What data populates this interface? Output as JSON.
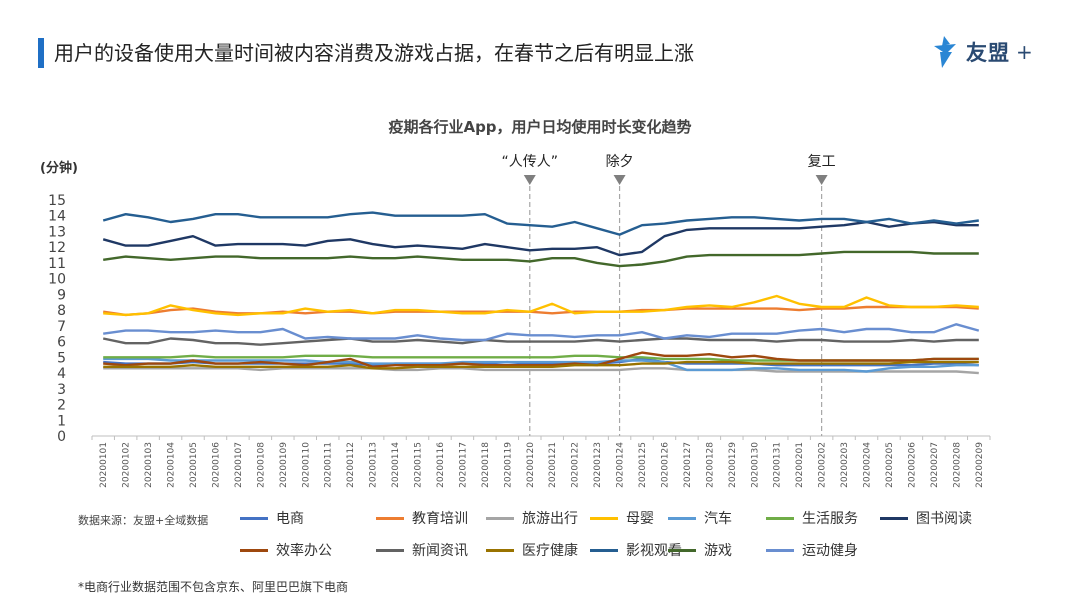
{
  "header": {
    "title": "用户的设备使用大量时间被内容消费及游戏占据，在春节之后有明显上涨",
    "logo_text": "友盟",
    "logo_plus": "+"
  },
  "source_label": "数据来源：友盟+全域数据",
  "footnote": "*电商行业数据范围不包含京东、阿里巴巴旗下电商",
  "chart_data": {
    "type": "line",
    "title": "疫期各行业App，用户日均使用时长变化趋势",
    "ylabel": "(分钟)",
    "ylim": [
      0,
      15
    ],
    "yticks": [
      0,
      1,
      2,
      3,
      4,
      5,
      6,
      7,
      8,
      9,
      10,
      11,
      12,
      13,
      14,
      15
    ],
    "categories": [
      "20200101",
      "20200102",
      "20200103",
      "20200104",
      "20200105",
      "20200106",
      "20200107",
      "20200108",
      "20200109",
      "20200110",
      "20200111",
      "20200112",
      "20200113",
      "20200114",
      "20200115",
      "20200116",
      "20200117",
      "20200118",
      "20200119",
      "20200120",
      "20200121",
      "20200122",
      "20200123",
      "20200124",
      "20200125",
      "20200126",
      "20200127",
      "20200128",
      "20200129",
      "20200130",
      "20200131",
      "20200201",
      "20200202",
      "20200203",
      "20200204",
      "20200205",
      "20200206",
      "20200207",
      "20200208",
      "20200209"
    ],
    "annotations": [
      {
        "label": "“人传人”",
        "category": "20200120"
      },
      {
        "label": "除夕",
        "category": "20200124"
      },
      {
        "label": "复工",
        "category": "20200202"
      }
    ],
    "series": [
      {
        "name": "电商",
        "color": "#4472c4",
        "values": [
          4.7,
          4.6,
          4.6,
          4.6,
          4.7,
          4.6,
          4.6,
          4.6,
          4.6,
          4.6,
          4.6,
          4.6,
          4.5,
          4.6,
          4.6,
          4.6,
          4.6,
          4.6,
          4.7,
          4.6,
          4.6,
          4.6,
          4.6,
          4.7,
          4.9,
          4.7,
          4.6,
          4.6,
          4.6,
          4.6,
          4.5,
          4.5,
          4.5,
          4.5,
          4.5,
          4.5,
          4.5,
          4.6,
          4.6,
          4.5
        ]
      },
      {
        "name": "教育培训",
        "color": "#ed7d31",
        "values": [
          7.9,
          7.7,
          7.8,
          8.0,
          8.1,
          7.9,
          7.8,
          7.8,
          7.9,
          7.8,
          7.9,
          7.9,
          7.8,
          7.9,
          7.9,
          7.9,
          7.9,
          7.9,
          7.9,
          7.9,
          7.8,
          7.9,
          7.9,
          7.9,
          8.0,
          8.0,
          8.1,
          8.1,
          8.1,
          8.1,
          8.1,
          8.0,
          8.1,
          8.1,
          8.2,
          8.2,
          8.2,
          8.2,
          8.2,
          8.1
        ]
      },
      {
        "name": "旅游出行",
        "color": "#a5a5a5",
        "values": [
          4.3,
          4.3,
          4.3,
          4.3,
          4.3,
          4.3,
          4.3,
          4.2,
          4.3,
          4.3,
          4.3,
          4.3,
          4.3,
          4.2,
          4.2,
          4.3,
          4.3,
          4.2,
          4.2,
          4.2,
          4.2,
          4.2,
          4.2,
          4.2,
          4.3,
          4.3,
          4.2,
          4.2,
          4.2,
          4.2,
          4.1,
          4.1,
          4.1,
          4.1,
          4.1,
          4.1,
          4.1,
          4.1,
          4.1,
          4.0
        ]
      },
      {
        "name": "母婴",
        "color": "#ffc000",
        "values": [
          7.8,
          7.7,
          7.8,
          8.3,
          8.0,
          7.8,
          7.7,
          7.8,
          7.8,
          8.1,
          7.9,
          8.0,
          7.8,
          8.0,
          8.0,
          7.9,
          7.8,
          7.8,
          8.0,
          7.9,
          8.4,
          7.8,
          7.9,
          7.9,
          7.9,
          8.0,
          8.2,
          8.3,
          8.2,
          8.5,
          8.9,
          8.4,
          8.2,
          8.2,
          8.8,
          8.3,
          8.2,
          8.2,
          8.3,
          8.2
        ]
      },
      {
        "name": "汽车",
        "color": "#5b9bd5",
        "values": [
          4.9,
          4.9,
          4.9,
          4.8,
          4.8,
          4.8,
          4.8,
          4.8,
          4.8,
          4.8,
          4.7,
          4.7,
          4.6,
          4.6,
          4.6,
          4.6,
          4.7,
          4.7,
          4.7,
          4.7,
          4.7,
          4.7,
          4.7,
          4.8,
          4.8,
          4.7,
          4.2,
          4.2,
          4.2,
          4.3,
          4.3,
          4.2,
          4.2,
          4.2,
          4.1,
          4.3,
          4.4,
          4.4,
          4.5,
          4.5
        ]
      },
      {
        "name": "生活服务",
        "color": "#70ad47",
        "values": [
          5.0,
          5.0,
          5.0,
          5.0,
          5.1,
          5.0,
          5.0,
          5.0,
          5.0,
          5.1,
          5.1,
          5.1,
          5.0,
          5.0,
          5.0,
          5.0,
          5.0,
          5.0,
          5.0,
          5.0,
          5.0,
          5.1,
          5.1,
          5.0,
          5.0,
          4.9,
          4.9,
          4.9,
          4.8,
          4.8,
          4.8,
          4.8,
          4.8,
          4.8,
          4.8,
          4.8,
          4.8,
          4.9,
          4.9,
          4.9
        ]
      },
      {
        "name": "图书阅读",
        "color": "#1f3864",
        "values": [
          12.5,
          12.1,
          12.1,
          12.4,
          12.7,
          12.1,
          12.2,
          12.2,
          12.2,
          12.1,
          12.4,
          12.5,
          12.2,
          12.0,
          12.1,
          12.0,
          11.9,
          12.2,
          12.0,
          11.8,
          11.9,
          11.9,
          12.0,
          11.5,
          11.7,
          12.7,
          13.1,
          13.2,
          13.2,
          13.2,
          13.2,
          13.2,
          13.3,
          13.4,
          13.6,
          13.3,
          13.5,
          13.6,
          13.4,
          13.4
        ]
      },
      {
        "name": "效率办公",
        "color": "#9e480e",
        "values": [
          4.6,
          4.5,
          4.6,
          4.6,
          4.8,
          4.6,
          4.6,
          4.7,
          4.6,
          4.5,
          4.7,
          4.9,
          4.4,
          4.5,
          4.5,
          4.5,
          4.6,
          4.5,
          4.5,
          4.5,
          4.5,
          4.6,
          4.5,
          4.9,
          5.3,
          5.1,
          5.1,
          5.2,
          5.0,
          5.1,
          4.9,
          4.8,
          4.8,
          4.8,
          4.8,
          4.8,
          4.8,
          4.9,
          4.9,
          4.9
        ]
      },
      {
        "name": "新闻资讯",
        "color": "#636363",
        "values": [
          6.2,
          5.9,
          5.9,
          6.2,
          6.1,
          5.9,
          5.9,
          5.8,
          5.9,
          6.0,
          6.1,
          6.2,
          6.0,
          6.0,
          6.1,
          6.0,
          5.9,
          6.1,
          6.0,
          6.0,
          6.0,
          6.0,
          6.1,
          6.0,
          6.1,
          6.2,
          6.2,
          6.1,
          6.1,
          6.1,
          6.0,
          6.1,
          6.1,
          6.0,
          6.0,
          6.0,
          6.1,
          6.0,
          6.1,
          6.1
        ]
      },
      {
        "name": "医疗健康",
        "color": "#997300",
        "values": [
          4.4,
          4.4,
          4.4,
          4.4,
          4.5,
          4.4,
          4.4,
          4.4,
          4.4,
          4.4,
          4.4,
          4.5,
          4.3,
          4.3,
          4.4,
          4.4,
          4.4,
          4.4,
          4.4,
          4.4,
          4.4,
          4.5,
          4.5,
          4.5,
          4.6,
          4.6,
          4.7,
          4.7,
          4.7,
          4.6,
          4.6,
          4.6,
          4.6,
          4.6,
          4.6,
          4.6,
          4.7,
          4.7,
          4.7,
          4.7
        ]
      },
      {
        "name": "影视观看",
        "color": "#255e91",
        "values": [
          13.7,
          14.1,
          13.9,
          13.6,
          13.8,
          14.1,
          14.1,
          13.9,
          13.9,
          13.9,
          13.9,
          14.1,
          14.2,
          14.0,
          14.0,
          14.0,
          14.0,
          14.1,
          13.5,
          13.4,
          13.3,
          13.6,
          13.2,
          12.8,
          13.4,
          13.5,
          13.7,
          13.8,
          13.9,
          13.9,
          13.8,
          13.7,
          13.8,
          13.8,
          13.6,
          13.8,
          13.5,
          13.7,
          13.5,
          13.7
        ]
      },
      {
        "name": "游戏",
        "color": "#43682b",
        "values": [
          11.2,
          11.4,
          11.3,
          11.2,
          11.3,
          11.4,
          11.4,
          11.3,
          11.3,
          11.3,
          11.3,
          11.4,
          11.3,
          11.3,
          11.4,
          11.3,
          11.2,
          11.2,
          11.2,
          11.1,
          11.3,
          11.3,
          11.0,
          10.8,
          10.9,
          11.1,
          11.4,
          11.5,
          11.5,
          11.5,
          11.5,
          11.5,
          11.6,
          11.7,
          11.7,
          11.7,
          11.7,
          11.6,
          11.6,
          11.6
        ]
      },
      {
        "name": "运动健身",
        "color": "#698ed0",
        "values": [
          6.5,
          6.7,
          6.7,
          6.6,
          6.6,
          6.7,
          6.6,
          6.6,
          6.8,
          6.2,
          6.3,
          6.2,
          6.2,
          6.2,
          6.4,
          6.2,
          6.1,
          6.1,
          6.5,
          6.4,
          6.4,
          6.3,
          6.4,
          6.4,
          6.6,
          6.2,
          6.4,
          6.3,
          6.5,
          6.5,
          6.5,
          6.7,
          6.8,
          6.6,
          6.8,
          6.8,
          6.6,
          6.6,
          7.1,
          6.7
        ]
      }
    ]
  }
}
